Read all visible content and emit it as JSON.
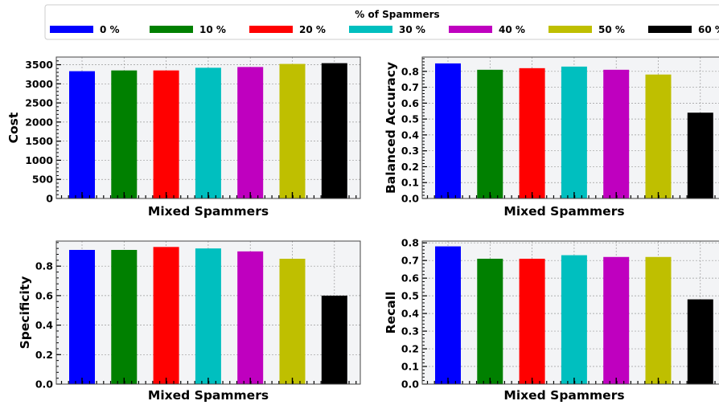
{
  "legend": {
    "title": "% of Spammers",
    "entries": [
      {
        "name": "0 %",
        "color": "#0000ff"
      },
      {
        "name": "10 %",
        "color": "#008000"
      },
      {
        "name": "20 %",
        "color": "#ff0000"
      },
      {
        "name": "30 %",
        "color": "#00bfbf"
      },
      {
        "name": "40 %",
        "color": "#bf00bf"
      },
      {
        "name": "50 %",
        "color": "#bfbf00"
      },
      {
        "name": "60 %",
        "color": "#000000"
      }
    ]
  },
  "chart_data": [
    {
      "type": "bar",
      "xlabel": "Mixed Spammers",
      "ylabel": "Cost",
      "ylim": [
        0,
        3700
      ],
      "yticks": [
        0,
        500,
        1000,
        1500,
        2000,
        2500,
        3000,
        3500
      ],
      "ytick_labels": [
        "0",
        "500",
        "1000",
        "1500",
        "2000",
        "2500",
        "3000",
        "3500"
      ],
      "series": [
        {
          "name": "0 %",
          "values": [
            3330
          ]
        },
        {
          "name": "10 %",
          "values": [
            3350
          ]
        },
        {
          "name": "20 %",
          "values": [
            3350
          ]
        },
        {
          "name": "30 %",
          "values": [
            3420
          ]
        },
        {
          "name": "40 %",
          "values": [
            3440
          ]
        },
        {
          "name": "50 %",
          "values": [
            3520
          ]
        },
        {
          "name": "60 %",
          "values": [
            3540
          ]
        }
      ],
      "grid": true
    },
    {
      "type": "bar",
      "xlabel": "Mixed Spammers",
      "ylabel": "Balanced Accuracy",
      "ylim": [
        0,
        0.89
      ],
      "yticks": [
        0.0,
        0.1,
        0.2,
        0.3,
        0.4,
        0.5,
        0.6,
        0.7,
        0.8
      ],
      "ytick_labels": [
        "0.0",
        "0.1",
        "0.2",
        "0.3",
        "0.4",
        "0.5",
        "0.6",
        "0.7",
        "0.8"
      ],
      "series": [
        {
          "name": "0 %",
          "values": [
            0.85
          ]
        },
        {
          "name": "10 %",
          "values": [
            0.81
          ]
        },
        {
          "name": "20 %",
          "values": [
            0.82
          ]
        },
        {
          "name": "30 %",
          "values": [
            0.83
          ]
        },
        {
          "name": "40 %",
          "values": [
            0.81
          ]
        },
        {
          "name": "50 %",
          "values": [
            0.78
          ]
        },
        {
          "name": "60 %",
          "values": [
            0.54
          ]
        }
      ],
      "grid": true
    },
    {
      "type": "bar",
      "xlabel": "Mixed Spammers",
      "ylabel": "Specificity",
      "ylim": [
        0,
        0.97
      ],
      "yticks": [
        0.0,
        0.2,
        0.4,
        0.6,
        0.8
      ],
      "ytick_labels": [
        "0.0",
        "0.2",
        "0.4",
        "0.6",
        "0.8"
      ],
      "series": [
        {
          "name": "0 %",
          "values": [
            0.91
          ]
        },
        {
          "name": "10 %",
          "values": [
            0.91
          ]
        },
        {
          "name": "20 %",
          "values": [
            0.93
          ]
        },
        {
          "name": "30 %",
          "values": [
            0.92
          ]
        },
        {
          "name": "40 %",
          "values": [
            0.9
          ]
        },
        {
          "name": "50 %",
          "values": [
            0.85
          ]
        },
        {
          "name": "60 %",
          "values": [
            0.6
          ]
        }
      ],
      "grid": true
    },
    {
      "type": "bar",
      "xlabel": "Mixed Spammers",
      "ylabel": "Recall",
      "ylim": [
        0,
        0.81
      ],
      "yticks": [
        0.0,
        0.1,
        0.2,
        0.3,
        0.4,
        0.5,
        0.6,
        0.7,
        0.8
      ],
      "ytick_labels": [
        "0.0",
        "0.1",
        "0.2",
        "0.3",
        "0.4",
        "0.5",
        "0.6",
        "0.7",
        "0.8"
      ],
      "series": [
        {
          "name": "0 %",
          "values": [
            0.78
          ]
        },
        {
          "name": "10 %",
          "values": [
            0.71
          ]
        },
        {
          "name": "20 %",
          "values": [
            0.71
          ]
        },
        {
          "name": "30 %",
          "values": [
            0.73
          ]
        },
        {
          "name": "40 %",
          "values": [
            0.72
          ]
        },
        {
          "name": "50 %",
          "values": [
            0.72
          ]
        },
        {
          "name": "60 %",
          "values": [
            0.48
          ]
        }
      ],
      "grid": true
    }
  ]
}
